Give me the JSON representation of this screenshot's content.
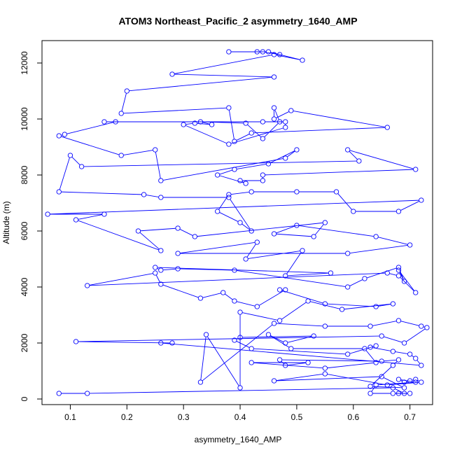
{
  "chart_data": {
    "type": "line",
    "title": "ATOM3 Northeast_Pacific_2 asymmetry_1640_AMP",
    "xlabel": "asymmetry_1640_AMP",
    "ylabel": "Altitude (m)",
    "xlim": [
      0.05,
      0.74
    ],
    "ylim": [
      -200,
      12800
    ],
    "xticks": [
      0.1,
      0.2,
      0.3,
      0.4,
      0.5,
      0.6,
      0.7
    ],
    "xtick_labels": [
      "0.1",
      "0.2",
      "0.3",
      "0.4",
      "0.5",
      "0.6",
      "0.7"
    ],
    "yticks": [
      0,
      2000,
      4000,
      6000,
      8000,
      10000,
      12000
    ],
    "ytick_labels": [
      "0",
      "2000",
      "4000",
      "6000",
      "8000",
      "10000",
      "12000"
    ],
    "grid": false,
    "legend": "none",
    "colors": {
      "series": "#0000ff",
      "axis": "#000000"
    },
    "series": [
      {
        "marker": "open-circle",
        "points": [
          [
            0.08,
            200
          ],
          [
            0.13,
            200
          ],
          [
            0.67,
            400
          ],
          [
            0.69,
            200
          ],
          [
            0.68,
            200
          ],
          [
            0.7,
            200
          ],
          [
            0.67,
            200
          ],
          [
            0.63,
            200
          ],
          [
            0.64,
            500
          ],
          [
            0.71,
            600
          ],
          [
            0.68,
            700
          ],
          [
            0.69,
            600
          ],
          [
            0.7,
            650
          ],
          [
            0.71,
            700
          ],
          [
            0.72,
            600
          ],
          [
            0.66,
            500
          ],
          [
            0.55,
            900
          ],
          [
            0.46,
            650
          ],
          [
            0.65,
            800
          ],
          [
            0.69,
            400
          ],
          [
            0.63,
            450
          ],
          [
            0.67,
            1200
          ],
          [
            0.68,
            1400
          ],
          [
            0.65,
            1350
          ],
          [
            0.47,
            1400
          ],
          [
            0.48,
            1200
          ],
          [
            0.52,
            1300
          ],
          [
            0.42,
            1300
          ],
          [
            0.55,
            1100
          ],
          [
            0.64,
            1300
          ],
          [
            0.62,
            1800
          ],
          [
            0.49,
            1800
          ],
          [
            0.45,
            2300
          ],
          [
            0.48,
            2000
          ],
          [
            0.53,
            2250
          ],
          [
            0.4,
            2200
          ],
          [
            0.39,
            2100
          ],
          [
            0.42,
            1800
          ],
          [
            0.59,
            1600
          ],
          [
            0.64,
            1900
          ],
          [
            0.63,
            1850
          ],
          [
            0.67,
            1700
          ],
          [
            0.7,
            1600
          ],
          [
            0.71,
            1450
          ],
          [
            0.72,
            1200
          ],
          [
            0.26,
            2000
          ],
          [
            0.28,
            2000
          ],
          [
            0.11,
            2050
          ],
          [
            0.65,
            2250
          ],
          [
            0.69,
            2000
          ],
          [
            0.73,
            2550
          ],
          [
            0.72,
            2600
          ],
          [
            0.68,
            2800
          ],
          [
            0.63,
            2600
          ],
          [
            0.55,
            2600
          ],
          [
            0.46,
            2700
          ],
          [
            0.33,
            600
          ],
          [
            0.34,
            2300
          ],
          [
            0.4,
            400
          ],
          [
            0.4,
            3100
          ],
          [
            0.47,
            2800
          ],
          [
            0.52,
            3500
          ],
          [
            0.58,
            3200
          ],
          [
            0.67,
            3400
          ],
          [
            0.64,
            3300
          ],
          [
            0.55,
            3400
          ],
          [
            0.47,
            3900
          ],
          [
            0.48,
            3900
          ],
          [
            0.43,
            3300
          ],
          [
            0.39,
            3500
          ],
          [
            0.37,
            3800
          ],
          [
            0.33,
            3600
          ],
          [
            0.26,
            4100
          ],
          [
            0.25,
            4500
          ],
          [
            0.13,
            4050
          ],
          [
            0.66,
            4500
          ],
          [
            0.68,
            4400
          ],
          [
            0.71,
            3800
          ],
          [
            0.68,
            4600
          ],
          [
            0.69,
            4200
          ],
          [
            0.68,
            4700
          ],
          [
            0.62,
            4300
          ],
          [
            0.59,
            4000
          ],
          [
            0.39,
            4600
          ],
          [
            0.29,
            4650
          ],
          [
            0.26,
            4600
          ],
          [
            0.25,
            4700
          ],
          [
            0.56,
            4500
          ],
          [
            0.48,
            4400
          ],
          [
            0.51,
            5300
          ],
          [
            0.41,
            5000
          ],
          [
            0.43,
            5600
          ],
          [
            0.29,
            5200
          ],
          [
            0.59,
            5200
          ],
          [
            0.7,
            5500
          ],
          [
            0.64,
            5800
          ],
          [
            0.5,
            6200
          ],
          [
            0.46,
            5900
          ],
          [
            0.53,
            5800
          ],
          [
            0.55,
            6300
          ],
          [
            0.32,
            5800
          ],
          [
            0.29,
            6100
          ],
          [
            0.22,
            6000
          ],
          [
            0.26,
            5300
          ],
          [
            0.11,
            6400
          ],
          [
            0.16,
            6600
          ],
          [
            0.06,
            6600
          ],
          [
            0.72,
            7100
          ],
          [
            0.68,
            6700
          ],
          [
            0.6,
            6700
          ],
          [
            0.57,
            7400
          ],
          [
            0.5,
            7400
          ],
          [
            0.42,
            7400
          ],
          [
            0.38,
            7300
          ],
          [
            0.36,
            6700
          ],
          [
            0.4,
            6300
          ],
          [
            0.42,
            6000
          ],
          [
            0.38,
            7200
          ],
          [
            0.26,
            7200
          ],
          [
            0.23,
            7300
          ],
          [
            0.08,
            7400
          ],
          [
            0.1,
            8700
          ],
          [
            0.12,
            8300
          ],
          [
            0.61,
            8500
          ],
          [
            0.59,
            8900
          ],
          [
            0.71,
            8200
          ],
          [
            0.44,
            8000
          ],
          [
            0.44,
            7800
          ],
          [
            0.4,
            7800
          ],
          [
            0.41,
            7700
          ],
          [
            0.36,
            8000
          ],
          [
            0.39,
            8200
          ],
          [
            0.45,
            8400
          ],
          [
            0.5,
            8900
          ],
          [
            0.48,
            8600
          ],
          [
            0.26,
            7800
          ],
          [
            0.25,
            8900
          ],
          [
            0.19,
            8700
          ],
          [
            0.08,
            9400
          ],
          [
            0.09,
            9450
          ],
          [
            0.18,
            9900
          ],
          [
            0.16,
            9900
          ],
          [
            0.44,
            9900
          ],
          [
            0.48,
            9900
          ],
          [
            0.48,
            9700
          ],
          [
            0.38,
            9100
          ],
          [
            0.3,
            9800
          ],
          [
            0.32,
            9850
          ],
          [
            0.35,
            9800
          ],
          [
            0.33,
            9900
          ],
          [
            0.41,
            9850
          ],
          [
            0.44,
            9300
          ],
          [
            0.47,
            9900
          ],
          [
            0.46,
            10400
          ],
          [
            0.46,
            10000
          ],
          [
            0.49,
            10300
          ],
          [
            0.66,
            9700
          ],
          [
            0.42,
            9500
          ],
          [
            0.39,
            9200
          ],
          [
            0.38,
            10400
          ],
          [
            0.19,
            10200
          ],
          [
            0.2,
            11000
          ],
          [
            0.46,
            11500
          ],
          [
            0.28,
            11600
          ],
          [
            0.46,
            12300
          ],
          [
            0.51,
            12100
          ],
          [
            0.45,
            12400
          ],
          [
            0.43,
            12400
          ],
          [
            0.38,
            12400
          ],
          [
            0.44,
            12400
          ],
          [
            0.47,
            12300
          ]
        ]
      }
    ]
  }
}
